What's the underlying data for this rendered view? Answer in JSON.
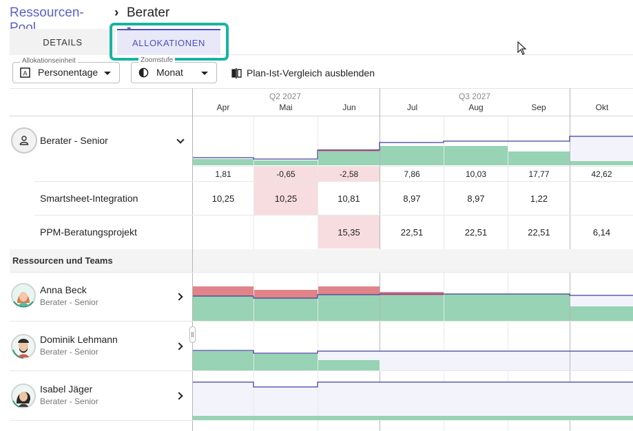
{
  "breadcrumb": {
    "parent": "Ressourcen-Pool",
    "separator": "›",
    "current": "Berater - Senior"
  },
  "tabs": {
    "details": "DETAILS",
    "allocations": "ALLOKATIONEN"
  },
  "toolbar": {
    "unit": {
      "label": "Allokationseinheit",
      "value": "Personentage"
    },
    "zoom": {
      "label": "Zoomstufe",
      "value": "Monat"
    },
    "toggle_label": "Plan-Ist-Vergleich ausblenden"
  },
  "timeline": {
    "quarters": [
      "Q2 2027",
      "Q3 2027"
    ],
    "months": [
      "Apr",
      "Mai",
      "Jun",
      "Jul",
      "Aug",
      "Sep",
      "Okt"
    ]
  },
  "role": {
    "name": "Berater - Senior",
    "diffs": [
      "1,81",
      "-0,65",
      "-2,58",
      "7,86",
      "10,03",
      "17,77",
      "42,62"
    ]
  },
  "projects": [
    {
      "name": "Smartsheet-Integration",
      "values": [
        "10,25",
        "10,25",
        "10,81",
        "8,97",
        "8,97",
        "1,22",
        ""
      ]
    },
    {
      "name": "PPM-Beratungsprojekt",
      "values": [
        "",
        "",
        "15,35",
        "22,51",
        "22,51",
        "22,51",
        "6,14"
      ]
    }
  ],
  "section_title": "Ressourcen und Teams",
  "resources": [
    {
      "name": "Anna Beck",
      "role": "Berater - Senior"
    },
    {
      "name": "Dominik Lehmann",
      "role": "Berater - Senior"
    },
    {
      "name": "Isabel Jäger",
      "role": "Berater - Senior"
    }
  ],
  "colors": {
    "accent": "#5b5fc7",
    "highlight": "#19b3a1",
    "allocated": "#97d3b4",
    "overallocated": "#e0848a",
    "capacity_line": "#3d3f9a",
    "capacity_fill": "#f3f3fb",
    "negative_cell": "#f8dde0"
  }
}
